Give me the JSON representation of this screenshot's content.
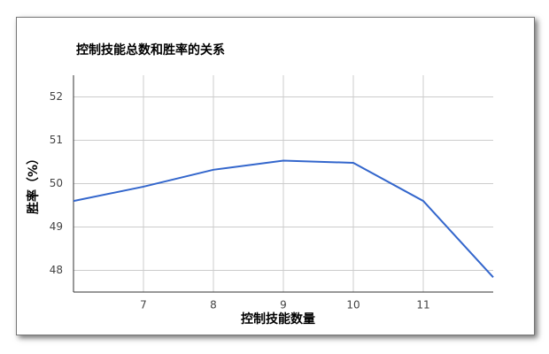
{
  "chart_data": {
    "type": "line",
    "title": "控制技能总数和胜率的关系",
    "x_label": "控制技能数量",
    "y_label": "胜率（%）",
    "x": [
      6,
      7,
      8,
      9,
      10,
      11,
      12
    ],
    "series": [
      {
        "name": "胜率",
        "color": "#3366cc",
        "values": [
          49.6,
          49.93,
          50.32,
          50.53,
          50.48,
          49.6,
          47.84
        ]
      }
    ],
    "xlim": [
      6,
      12
    ],
    "xticks": [
      7,
      8,
      9,
      10,
      11
    ],
    "ylim": [
      47.5,
      52.5
    ],
    "yticks": [
      48,
      49,
      50,
      51,
      52
    ],
    "grid": true
  }
}
